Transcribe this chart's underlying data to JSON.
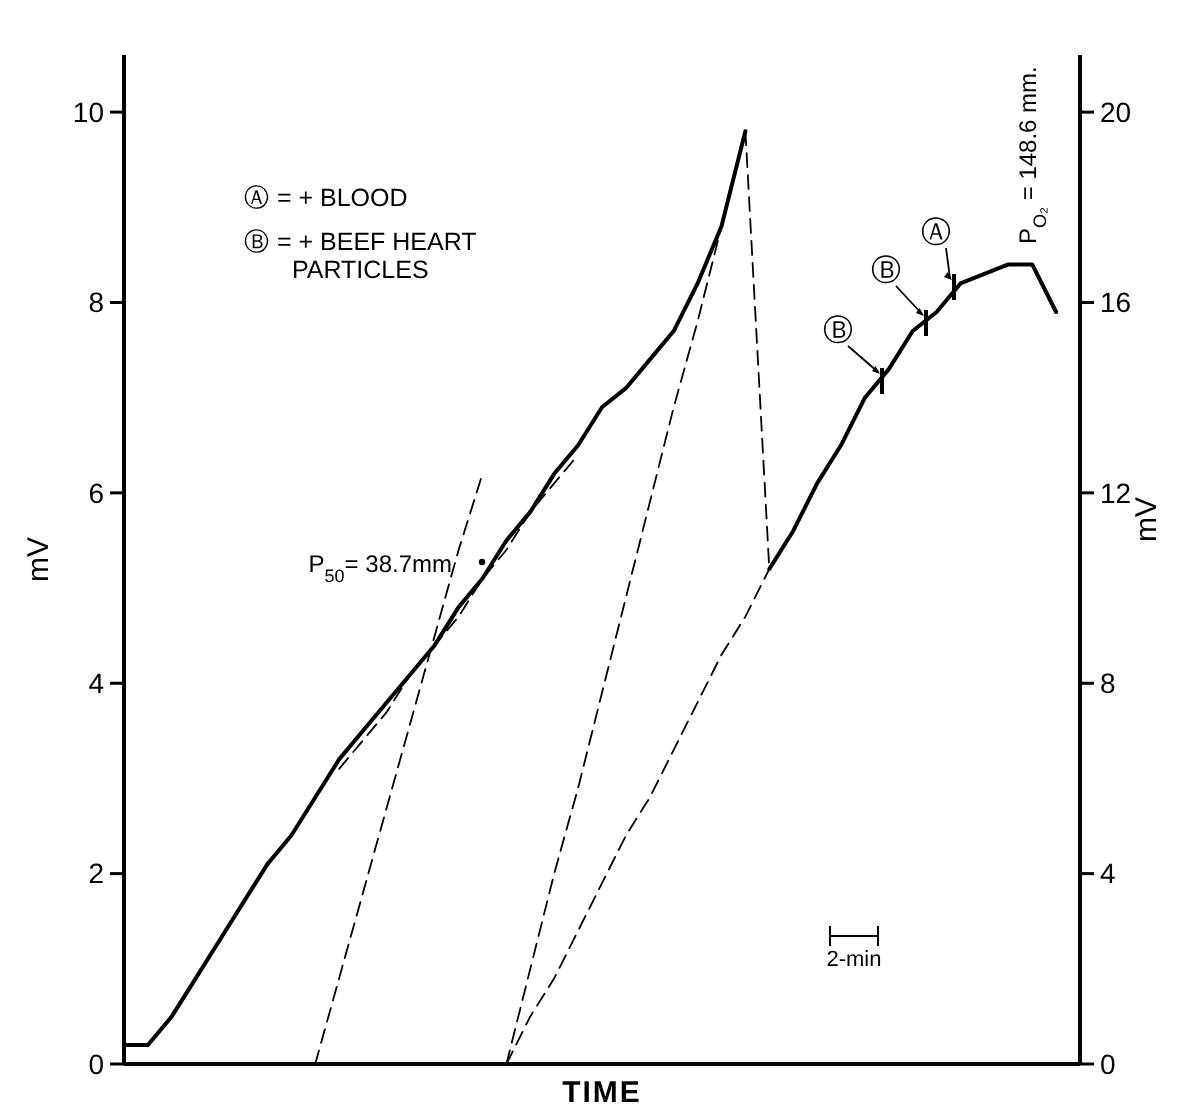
{
  "chart_data": {
    "type": "line",
    "xlabel": "TIME",
    "ylabel": "mV",
    "y2label": "mV",
    "categories": [
      null,
      null,
      null,
      null,
      null,
      null,
      null,
      null,
      null,
      null,
      null,
      null,
      null,
      null,
      null,
      null,
      null,
      null,
      null,
      null,
      null,
      null,
      null,
      null,
      null,
      null,
      null,
      null,
      null,
      null,
      null,
      null,
      null,
      null,
      null,
      null,
      null,
      null,
      null,
      null,
      null
    ],
    "ylim": [
      0,
      10.6
    ],
    "yticks": [
      0,
      2,
      4,
      6,
      8,
      10
    ],
    "y2lim": [
      0,
      21.2
    ],
    "y2ticks": [
      0,
      4,
      8,
      12,
      16,
      20
    ],
    "tick_labels": "y",
    "grid": false,
    "marker": "none",
    "series": [
      {
        "color": "#000000",
        "line_style": "solid",
        "values": [
          0.2,
          0.2,
          0.5,
          0.9,
          1.3,
          1.7,
          2.1,
          2.4,
          2.8,
          3.2,
          3.5,
          3.8,
          4.1,
          4.4,
          4.8,
          5.1,
          5.5,
          5.8,
          6.2,
          6.5,
          6.9,
          7.1,
          7.4,
          7.7,
          8.2,
          8.8,
          9.8,
          null,
          null,
          null,
          null,
          null,
          null,
          null,
          null,
          null,
          null,
          null,
          null,
          null,
          null
        ]
      },
      {
        "color": "#000000",
        "line_style": "solid",
        "values": [
          null,
          null,
          null,
          null,
          null,
          null,
          null,
          null,
          null,
          null,
          null,
          null,
          null,
          null,
          null,
          null,
          null,
          null,
          null,
          null,
          null,
          null,
          null,
          null,
          null,
          null,
          null,
          5.2,
          5.6,
          6.1,
          6.5,
          7.0,
          7.3,
          7.7,
          7.9,
          8.2,
          8.3,
          8.4,
          8.4,
          7.9,
          null
        ]
      },
      {
        "color": "#000000",
        "line_style": "dashed",
        "values": [
          null,
          null,
          null,
          null,
          null,
          null,
          null,
          null,
          null,
          3.1,
          3.4,
          3.7,
          4.1,
          4.4,
          4.7,
          5.1,
          5.4,
          5.8,
          6.1,
          6.4,
          null,
          null,
          null,
          null,
          null,
          null,
          null,
          null,
          null,
          null,
          null,
          null,
          null,
          null,
          null,
          null,
          null,
          null,
          null,
          null,
          null
        ]
      },
      {
        "color": "#000000",
        "line_style": "dashed",
        "values": [
          null,
          null,
          null,
          null,
          null,
          null,
          null,
          null,
          0,
          0.9,
          1.8,
          2.7,
          3.6,
          4.5,
          5.4,
          6.2,
          null,
          null,
          null,
          null,
          null,
          null,
          null,
          null,
          null,
          null,
          null,
          null,
          null,
          null,
          null,
          null,
          null,
          null,
          null,
          null,
          null,
          null,
          null,
          null,
          null
        ]
      },
      {
        "color": "#000000",
        "line_style": "dashed",
        "values": [
          null,
          null,
          null,
          null,
          null,
          null,
          null,
          null,
          null,
          null,
          null,
          null,
          null,
          null,
          null,
          null,
          0,
          1.0,
          2.0,
          2.9,
          3.9,
          4.9,
          5.9,
          6.9,
          7.8,
          8.8,
          9.8,
          null,
          null,
          null,
          null,
          null,
          null,
          null,
          null,
          null,
          null,
          null,
          null,
          null,
          null
        ]
      },
      {
        "color": "#000000",
        "line_style": "dashed",
        "values": [
          null,
          null,
          null,
          null,
          null,
          null,
          null,
          null,
          null,
          null,
          null,
          null,
          null,
          null,
          null,
          null,
          0,
          0.5,
          0.9,
          1.4,
          1.9,
          2.4,
          2.8,
          3.3,
          3.8,
          4.3,
          4.7,
          5.2,
          null,
          null,
          null,
          null,
          null,
          null,
          null,
          null,
          null,
          null,
          null,
          null,
          null
        ]
      },
      {
        "color": "#000000",
        "line_style": "dashed",
        "values": [
          null,
          null,
          null,
          null,
          null,
          null,
          null,
          null,
          null,
          null,
          null,
          null,
          null,
          null,
          null,
          null,
          null,
          null,
          null,
          null,
          null,
          null,
          null,
          null,
          null,
          null,
          9.8,
          5.2,
          null,
          null,
          null,
          null,
          null,
          null,
          null,
          null,
          null,
          null,
          null,
          null,
          null
        ]
      }
    ],
    "annotations": [
      "Ⓐ = + BLOOD",
      "Ⓑ = + BEEF HEART PARTICLES",
      "P$_{50}$= 38.7mm",
      "P$_{O₂}$ = 148.6 mm.",
      "Ⓑ",
      "Ⓑ",
      "Ⓐ",
      "2-min"
    ]
  }
}
